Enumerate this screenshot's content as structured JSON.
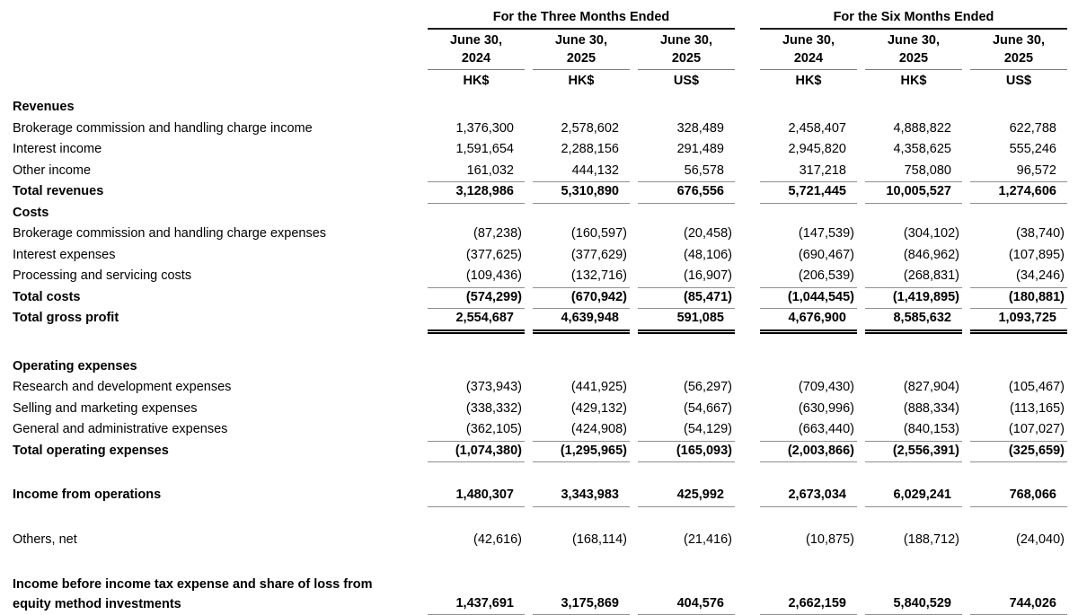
{
  "colors": {
    "text": "#000000",
    "rule_single": "#8f8f8f",
    "rule_strong": "#000000",
    "background": "#ffffff"
  },
  "table": {
    "group_headers": [
      {
        "label": "For the Three Months Ended"
      },
      {
        "label": "For the Six Months Ended"
      }
    ],
    "columns": [
      {
        "date_line1": "June 30,",
        "date_line2": "2024",
        "currency": "HK$"
      },
      {
        "date_line1": "June 30,",
        "date_line2": "2025",
        "currency": "HK$"
      },
      {
        "date_line1": "June 30,",
        "date_line2": "2025",
        "currency": "US$"
      },
      {
        "date_line1": "June 30,",
        "date_line2": "2024",
        "currency": "HK$"
      },
      {
        "date_line1": "June 30,",
        "date_line2": "2025",
        "currency": "HK$"
      },
      {
        "date_line1": "June 30,",
        "date_line2": "2025",
        "currency": "US$"
      }
    ],
    "rows": [
      {
        "type": "section",
        "label": "Revenues"
      },
      {
        "label": "Brokerage commission and handling charge income",
        "values": [
          "1,376,300",
          "2,578,602",
          "328,489",
          "2,458,407",
          "4,888,822",
          "622,788"
        ]
      },
      {
        "label": "Interest income",
        "values": [
          "1,591,654",
          "2,288,156",
          "291,489",
          "2,945,820",
          "4,358,625",
          "555,246"
        ]
      },
      {
        "label": "Other income",
        "rule_below": "single",
        "values": [
          "161,032",
          "444,132",
          "56,578",
          "317,218",
          "758,080",
          "96,572"
        ]
      },
      {
        "label": "Total revenues",
        "bold": true,
        "rule_below": "single",
        "values": [
          "3,128,986",
          "5,310,890",
          "676,556",
          "5,721,445",
          "10,005,527",
          "1,274,606"
        ]
      },
      {
        "type": "section",
        "label": "Costs"
      },
      {
        "label": "Brokerage commission and handling charge expenses",
        "values": [
          "(87,238)",
          "(160,597)",
          "(20,458)",
          "(147,539)",
          "(304,102)",
          "(38,740)"
        ]
      },
      {
        "label": "Interest expenses",
        "values": [
          "(377,625)",
          "(377,629)",
          "(48,106)",
          "(690,467)",
          "(846,962)",
          "(107,895)"
        ]
      },
      {
        "label": "Processing and servicing costs",
        "rule_below": "single",
        "values": [
          "(109,436)",
          "(132,716)",
          "(16,907)",
          "(206,539)",
          "(268,831)",
          "(34,246)"
        ]
      },
      {
        "label": "Total costs",
        "bold": true,
        "rule_below": "single",
        "values": [
          "(574,299)",
          "(670,942)",
          "(85,471)",
          "(1,044,545)",
          "(1,419,895)",
          "(180,881)"
        ]
      },
      {
        "label": "Total gross profit",
        "bold": true,
        "rule_below": "double",
        "values": [
          "2,554,687",
          "4,639,948",
          "591,085",
          "4,676,900",
          "8,585,632",
          "1,093,725"
        ]
      },
      {
        "type": "spacer",
        "size": "lg"
      },
      {
        "type": "section",
        "label": "Operating expenses"
      },
      {
        "label": "Research and development expenses",
        "values": [
          "(373,943)",
          "(441,925)",
          "(56,297)",
          "(709,430)",
          "(827,904)",
          "(105,467)"
        ]
      },
      {
        "label": "Selling and marketing expenses",
        "values": [
          "(338,332)",
          "(429,132)",
          "(54,667)",
          "(630,996)",
          "(888,334)",
          "(113,165)"
        ]
      },
      {
        "label": "General and administrative expenses",
        "rule_below": "single",
        "values": [
          "(362,105)",
          "(424,908)",
          "(54,129)",
          "(663,440)",
          "(840,153)",
          "(107,027)"
        ]
      },
      {
        "label": "Total operating expenses",
        "bold": true,
        "rule_below": "single",
        "values": [
          "(1,074,380)",
          "(1,295,965)",
          "(165,093)",
          "(2,003,866)",
          "(2,556,391)",
          "(325,659)"
        ]
      },
      {
        "type": "spacer",
        "size": "sm"
      },
      {
        "label": "Income from operations",
        "bold": true,
        "rule_below": "single",
        "values": [
          "1,480,307",
          "3,343,983",
          "425,992",
          "2,673,034",
          "6,029,241",
          "768,066"
        ]
      },
      {
        "type": "spacer",
        "size": "sm"
      },
      {
        "label": "Others, net",
        "values": [
          "(42,616)",
          "(168,114)",
          "(21,416)",
          "(10,875)",
          "(188,712)",
          "(24,040)"
        ]
      },
      {
        "type": "spacer",
        "size": "sm"
      },
      {
        "two_line": true,
        "bold": true,
        "rule_below": "single",
        "label_lines": [
          "Income before income tax expense and share of loss from",
          "equity method investments"
        ],
        "values": [
          "1,437,691",
          "3,175,869",
          "404,576",
          "2,662,159",
          "5,840,529",
          "744,026"
        ]
      }
    ]
  }
}
